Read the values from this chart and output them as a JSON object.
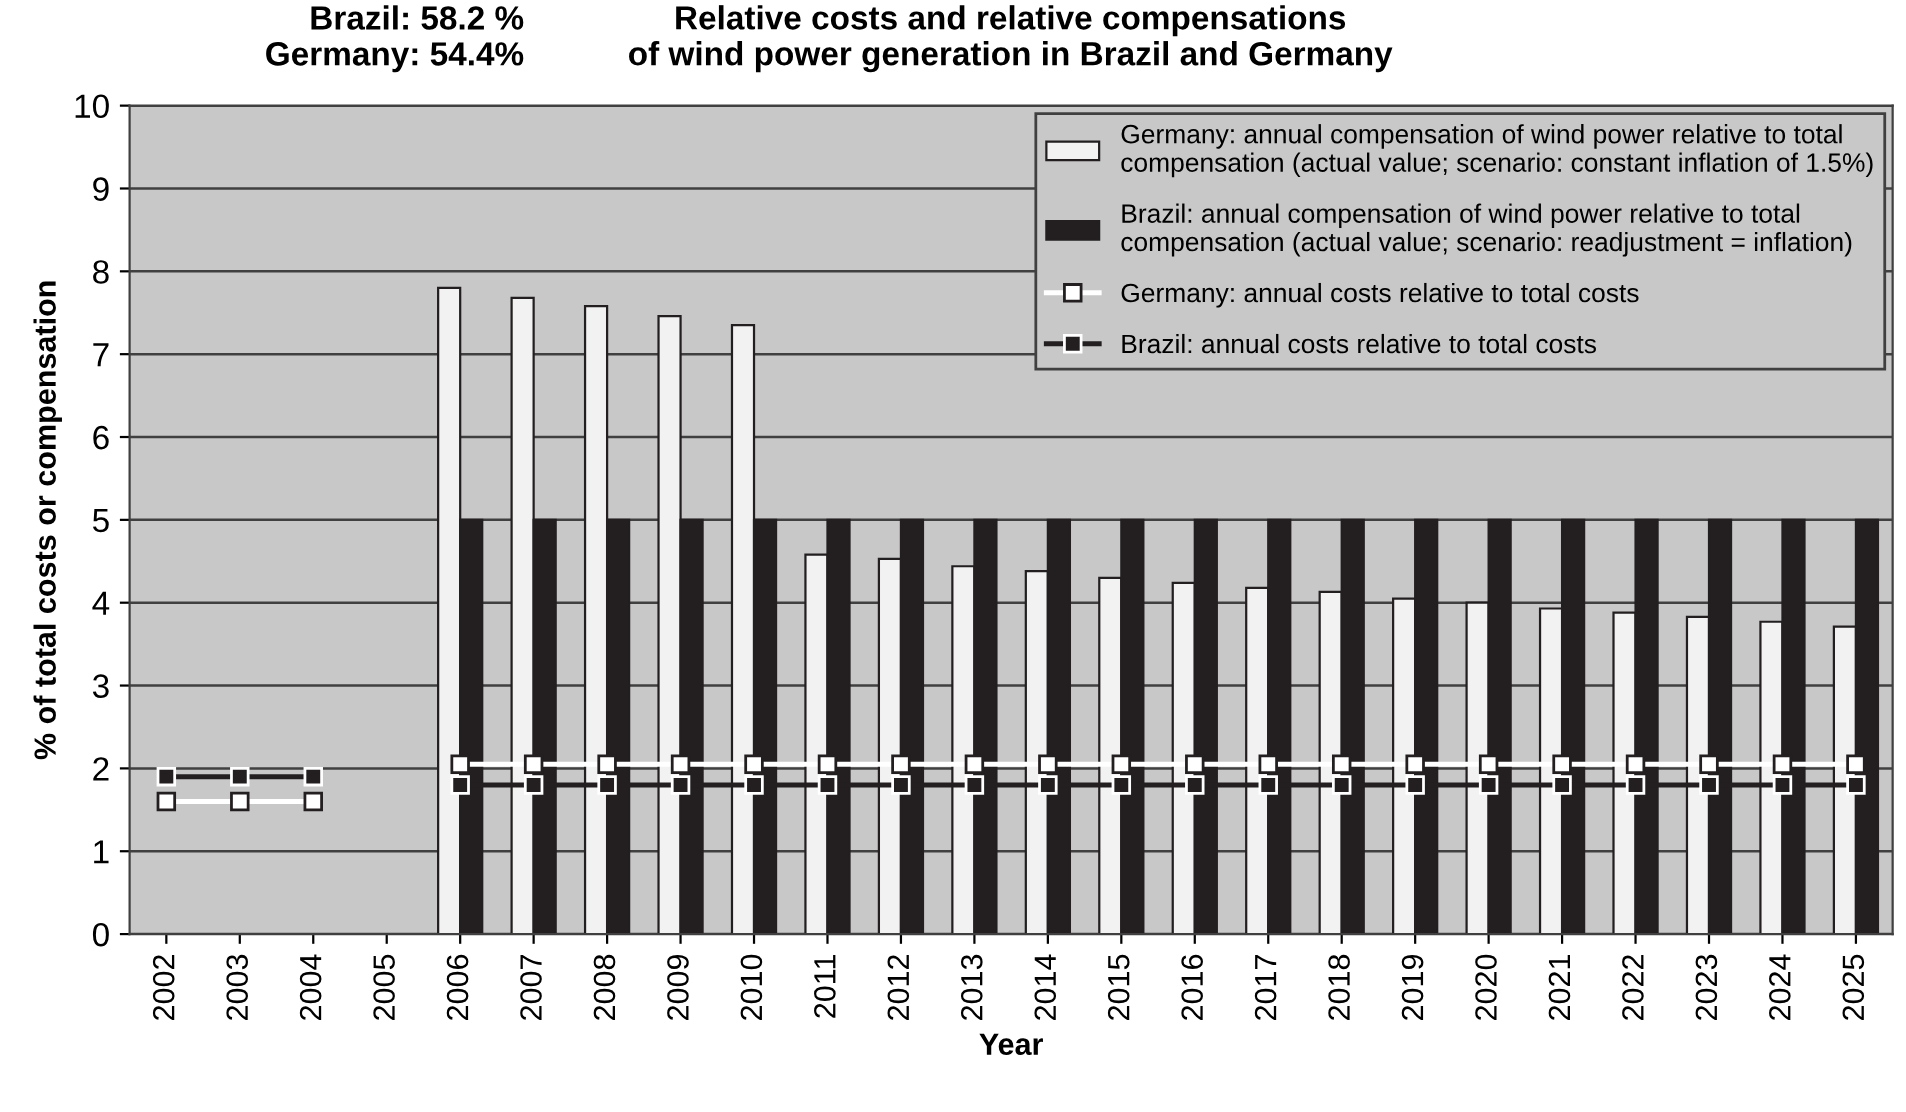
{
  "chart_data": {
    "type": "bar",
    "title": "Relative costs and relative compensations\nof wind power generation in Brazil and Germany",
    "xlabel": "Year",
    "ylabel": "% of total costs or compensation",
    "categories": [
      "2002",
      "2003",
      "2004",
      "2005",
      "2006",
      "2007",
      "2008",
      "2009",
      "2010",
      "2011",
      "2012",
      "2013",
      "2014",
      "2015",
      "2016",
      "2017",
      "2018",
      "2019",
      "2020",
      "2021",
      "2022",
      "2023",
      "2024",
      "2025"
    ],
    "series": [
      {
        "name": "Germany: annual compensation of wind power relative to total\ncompensation (actual value; scenario: constant inflation of 1.5%)",
        "color": "#f2f2f2",
        "values": [
          null,
          null,
          null,
          null,
          7.8,
          7.68,
          7.58,
          7.46,
          7.35,
          4.58,
          4.53,
          4.44,
          4.38,
          4.3,
          4.24,
          4.18,
          4.13,
          4.05,
          4.0,
          3.93,
          3.88,
          3.83,
          3.77,
          3.71
        ]
      },
      {
        "name": "Brazil: annual compensation of wind power relative to total\ncompensation (actual value; scenario: readjustment = inflation)",
        "color": "#231f20",
        "values": [
          null,
          null,
          null,
          null,
          5,
          5,
          5,
          5,
          5,
          5,
          5,
          5,
          5,
          5,
          5,
          5,
          5,
          5,
          5,
          5,
          5,
          5,
          5,
          5
        ]
      },
      {
        "name": "Germany: annual costs relative to total costs",
        "type": "line",
        "color": "#ffffff",
        "marker": "square",
        "values": [
          1.6,
          1.6,
          1.6,
          null,
          2.05,
          2.05,
          2.05,
          2.05,
          2.05,
          2.05,
          2.05,
          2.05,
          2.05,
          2.05,
          2.05,
          2.05,
          2.05,
          2.05,
          2.05,
          2.05,
          2.05,
          2.05,
          2.05,
          2.05
        ]
      },
      {
        "name": "Brazil: annual costs relative to total costs",
        "type": "line",
        "color": "#231f20",
        "marker": "square",
        "values": [
          1.9,
          1.9,
          1.9,
          null,
          1.8,
          1.8,
          1.8,
          1.8,
          1.8,
          1.8,
          1.8,
          1.8,
          1.8,
          1.8,
          1.8,
          1.8,
          1.8,
          1.8,
          1.8,
          1.8,
          1.8,
          1.8,
          1.8,
          1.8
        ]
      }
    ],
    "ylim": [
      0,
      10
    ],
    "yticks": [
      0,
      1,
      2,
      3,
      4,
      5,
      6,
      7,
      8,
      9,
      10
    ],
    "grid": "y",
    "legend": "top right",
    "annotations": [
      "Brazil: 58.2 %\nGermany: 54.4%"
    ]
  }
}
